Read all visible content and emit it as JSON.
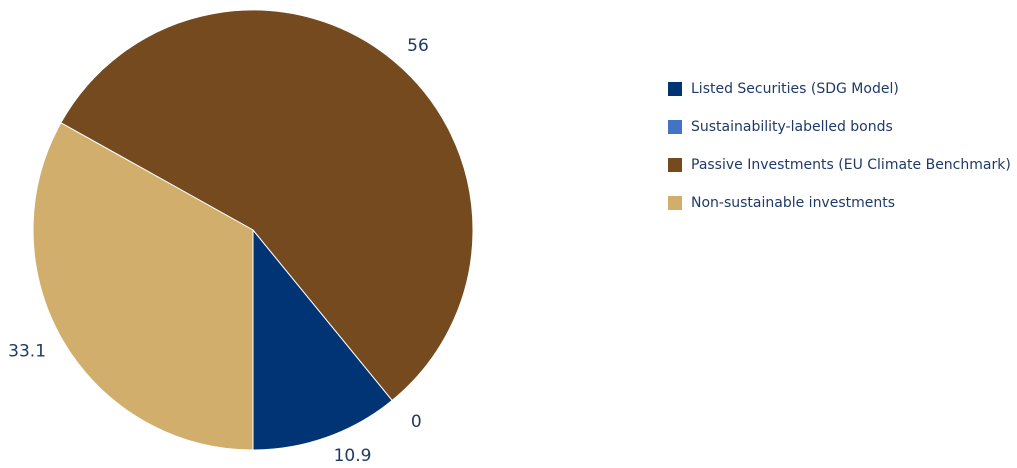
{
  "chart_data": {
    "type": "pie",
    "title": "",
    "series": [
      {
        "labels": [
          "Listed Securities (SDG Model)",
          "Sustainability-labelled bonds",
          "Passive Investments (EU Climate Benchmark)",
          "Non-sustainable investments"
        ],
        "values": [
          10.9,
          0,
          56,
          33.1
        ],
        "colors": [
          "#003474",
          "#4472c4",
          "#754a1f",
          "#d1ae6c"
        ]
      }
    ],
    "data_labels": [
      "10.9",
      "0",
      "56",
      "33.1"
    ],
    "start": "6 o'clock",
    "direction": "counter-clockwise",
    "legend_position": "right"
  },
  "legend": {
    "items": [
      {
        "label": "Listed Securities (SDG Model)",
        "color": "#003474"
      },
      {
        "label": "Sustainability-labelled bonds",
        "color": "#4472c4"
      },
      {
        "label": "Passive Investments (EU Climate Benchmark)",
        "color": "#754a1f"
      },
      {
        "label": "Non-sustainable investments",
        "color": "#d1ae6c"
      }
    ]
  }
}
